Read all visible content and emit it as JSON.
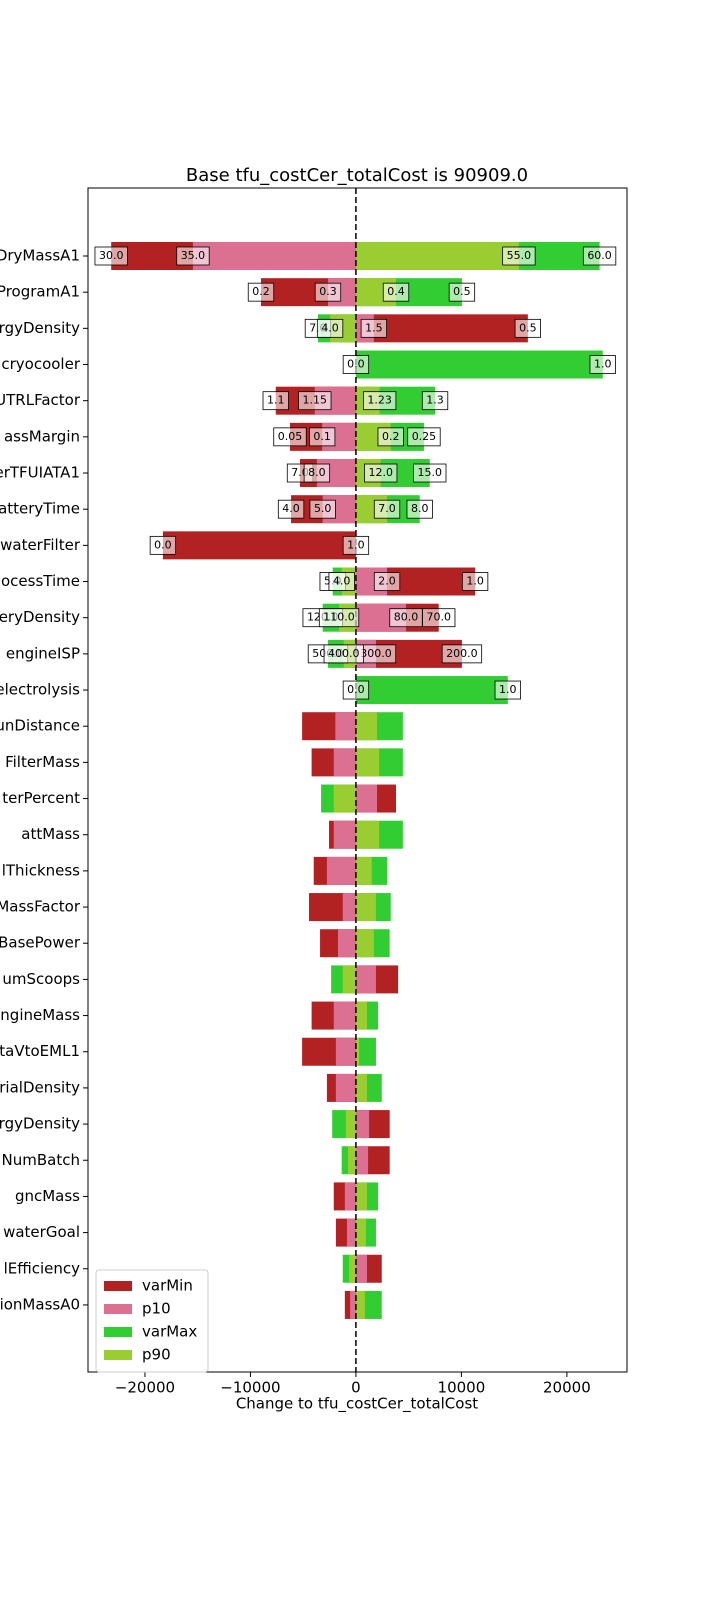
{
  "chart_data": {
    "type": "tornado",
    "title": "Base tfu_costCer_totalCost is 90909.0",
    "x_label": "Change to tfu_costCer_totalCost",
    "categories": [
      "DryMassA1",
      "ProgramA1",
      "rgyDensity",
      "cryocooler",
      "UTRLFactor",
      "assMargin",
      "erTFUIATA1",
      "atteryTime",
      "waterFilter",
      "ocessTime",
      "eryDensity",
      "engineISP",
      "electrolysis",
      "unDistance",
      "FilterMass",
      "terPercent",
      "attMass",
      "lThickness",
      "MassFactor",
      "BasePower",
      "umScoops",
      "ngineMass",
      "taVtoEML1",
      "rialDensity",
      "rgyDensity",
      "NumBatch",
      "gncMass",
      "waterGoal",
      "lEfficiency",
      "ionMassA0"
    ],
    "series": [
      {
        "name": "varMin",
        "color": "#b22222",
        "values": [
          -23200,
          -9000,
          16300,
          0,
          -7600,
          -6250,
          -5300,
          -6150,
          -18300,
          11300,
          7850,
          10050,
          0,
          -5100,
          -4200,
          3800,
          -2550,
          -4000,
          -4450,
          -3400,
          4000,
          -4200,
          -5100,
          -2750,
          3200,
          3200,
          -2100,
          -1900,
          2450,
          -1050
        ],
        "annotations": [
          "30.0",
          "0.2",
          "0.5",
          "0.0",
          "1.1",
          "0.05",
          "7.0",
          "4.0",
          "0.0",
          "1.0",
          "70.0",
          "200.0",
          "0.0",
          null,
          null,
          null,
          null,
          null,
          null,
          null,
          null,
          null,
          null,
          null,
          null,
          null,
          null,
          null,
          null,
          null
        ]
      },
      {
        "name": "p10",
        "color": "#db7093",
        "values": [
          -15450,
          -2650,
          1700,
          0,
          -3900,
          -3200,
          -3700,
          -3150,
          0,
          2950,
          4750,
          1900,
          0,
          -1950,
          -2100,
          2000,
          -2100,
          -2750,
          -1250,
          -1700,
          1900,
          -2100,
          -1900,
          -1900,
          1250,
          1150,
          -1050,
          -850,
          1050,
          -550
        ],
        "annotations": [
          "35.0",
          "0.3",
          "1.5",
          null,
          "1.15",
          "0.1",
          "8.0",
          "5.0",
          null,
          "2.0",
          "80.0",
          "300.0",
          null,
          null,
          null,
          null,
          null,
          null,
          null,
          null,
          null,
          null,
          null,
          null,
          null,
          null,
          null,
          null,
          null,
          null
        ]
      },
      {
        "name": "varMax",
        "color": "#32cd32",
        "values": [
          23100,
          10050,
          -3600,
          23400,
          7500,
          6450,
          7000,
          6050,
          0,
          -2200,
          -3150,
          -2650,
          14400,
          4450,
          4450,
          -3300,
          4450,
          2950,
          3300,
          3200,
          -2350,
          2100,
          1900,
          2450,
          -2250,
          -1350,
          2100,
          1900,
          -1250,
          2450
        ],
        "annotations": [
          "60.0",
          "0.5",
          "7.0",
          "1.0",
          "1.3",
          "0.25",
          "15.0",
          "8.0",
          "1.0",
          "5.0",
          "120.0",
          "500.0",
          "1.0",
          null,
          null,
          null,
          null,
          null,
          null,
          null,
          null,
          null,
          null,
          null,
          null,
          null,
          null,
          null,
          null,
          null
        ]
      },
      {
        "name": "p90",
        "color": "#9acd32",
        "values": [
          15450,
          3800,
          -2450,
          0,
          2250,
          3300,
          2350,
          2950,
          0,
          -1350,
          -1600,
          -1150,
          0,
          2000,
          2200,
          -2100,
          2200,
          1500,
          1900,
          1700,
          -1250,
          1050,
          300,
          1050,
          -950,
          -750,
          1050,
          950,
          -650,
          850
        ],
        "annotations": [
          "55.0",
          "0.4",
          "4.0",
          null,
          "1.23",
          "0.2",
          "12.0",
          "7.0",
          null,
          "4.0",
          "110.0",
          "400.0",
          null,
          null,
          null,
          null,
          null,
          null,
          null,
          null,
          null,
          null,
          null,
          null,
          null,
          null,
          null,
          null,
          null,
          null
        ]
      }
    ],
    "xlim": [
      -25400,
      25700
    ],
    "xticks": [
      {
        "value": -20000,
        "label": "−20000"
      },
      {
        "value": -10000,
        "label": "−10000"
      },
      0,
      10000,
      20000
    ],
    "zero_line": true,
    "legend": "lower left"
  }
}
